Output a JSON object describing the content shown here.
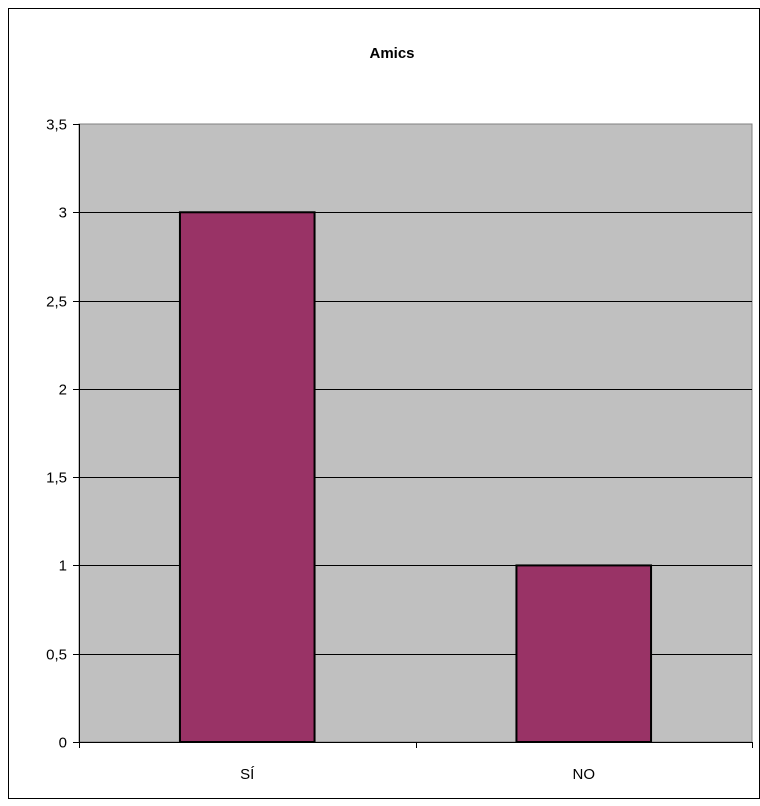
{
  "chart_data": {
    "type": "bar",
    "title": "Amics",
    "xlabel": "",
    "ylabel": "",
    "categories": [
      "SÍ",
      "NO"
    ],
    "values": [
      3,
      1
    ],
    "ylim": [
      0,
      3.5
    ],
    "y_ticks": [
      "0",
      "0,5",
      "1",
      "1,5",
      "2",
      "2,5",
      "3",
      "3,5"
    ],
    "grid": true,
    "legend": "none",
    "colors": {
      "bar": "#993366",
      "plot_background": "#c0c0c0",
      "gridline": "#000000"
    }
  }
}
